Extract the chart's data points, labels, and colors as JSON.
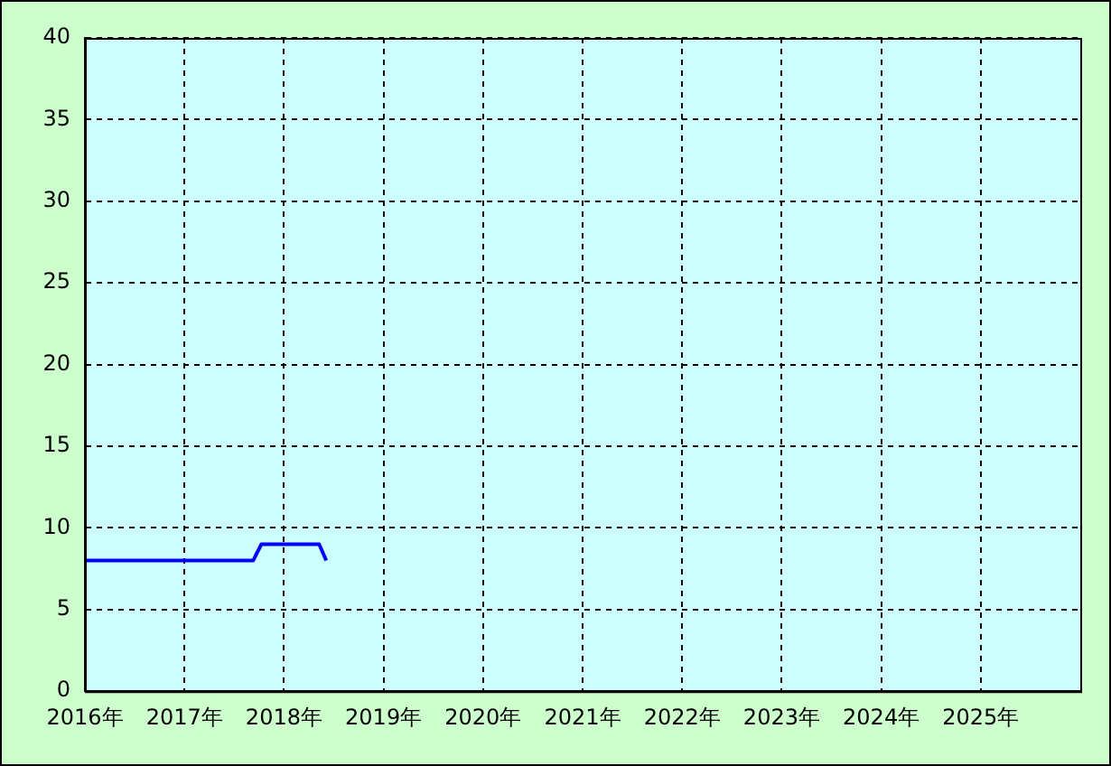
{
  "chart_data": {
    "type": "line",
    "x": [
      "2016-01-01",
      "2017-09-10",
      "2017-10-10",
      "2018-05-10",
      "2018-06-05"
    ],
    "series": [
      {
        "color": "#0000ff",
        "values": [
          8,
          8,
          9,
          9,
          8
        ]
      }
    ],
    "xlim": [
      "2016-01-01",
      "2026-01-01"
    ],
    "xticks": [
      {
        "value": "2016-01-01",
        "label": "2016年"
      },
      {
        "value": "2017-01-01",
        "label": "2017年"
      },
      {
        "value": "2018-01-01",
        "label": "2018年"
      },
      {
        "value": "2019-01-01",
        "label": "2019年"
      },
      {
        "value": "2020-01-01",
        "label": "2020年"
      },
      {
        "value": "2021-01-01",
        "label": "2021年"
      },
      {
        "value": "2022-01-01",
        "label": "2022年"
      },
      {
        "value": "2023-01-01",
        "label": "2023年"
      },
      {
        "value": "2024-01-01",
        "label": "2024年"
      },
      {
        "value": "2025-01-01",
        "label": "2025年"
      }
    ],
    "ylim": [
      0,
      40
    ],
    "yticks": [
      0,
      5,
      10,
      15,
      20,
      25,
      30,
      35,
      40
    ],
    "grid": true,
    "marker": "none",
    "line_style": "solid",
    "legend": false
  }
}
